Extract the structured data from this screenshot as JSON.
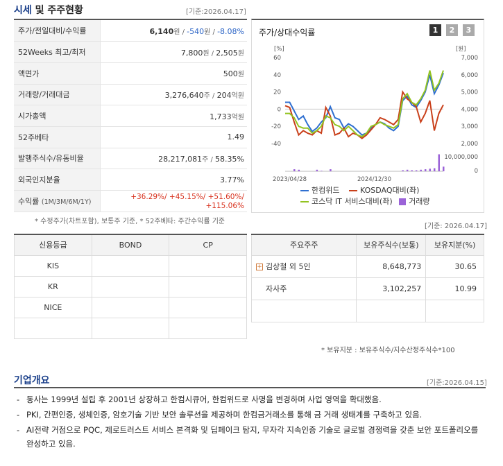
{
  "market": {
    "title_main": "시세",
    "title_rest": "및 주주현황",
    "ref_date": "[기준:2026.04.17]",
    "rows": [
      {
        "label": "주가/전일대비/수익률",
        "v1": "6,140",
        "u1": "원 / ",
        "v2": "-540",
        "u2": "원 / ",
        "v3": "-8.08%"
      },
      {
        "label": "52Weeks 최고/최저",
        "v1": "7,800",
        "u1": "원 / ",
        "v2": "2,505",
        "u2": "원"
      },
      {
        "label": "액면가",
        "v1": "500",
        "u1": "원"
      },
      {
        "label": "거래량/거래대금",
        "v1": "3,276,640",
        "u1": "주 / ",
        "v2": "204",
        "u2": "억원"
      },
      {
        "label": "시가총액",
        "v1": "1,733",
        "u1": "억원"
      },
      {
        "label": "52주베타",
        "v1": "1.49"
      },
      {
        "label": "발행주식수/유동비율",
        "v1": "28,217,081",
        "u1": "주 / ",
        "v2": "58.35%"
      },
      {
        "label": "외국인지분율",
        "v1": "3.77%"
      },
      {
        "label": "수익률",
        "sub": "(1M/3M/6M/1Y)",
        "returns": "+36.29%/ +45.15%/ +51.60%/ +115.06%"
      }
    ],
    "footnote": "* 수정주가(차트포함), 보통주 기준, * 52주베타: 주간수익률 기준"
  },
  "chart_panel": {
    "title": "주가/상대수익률",
    "tabs": [
      "1",
      "2",
      "3"
    ],
    "active_tab": 0
  },
  "chart_data": {
    "type": "line",
    "left_axis_unit": "[%]",
    "right_axis_unit": "[원]",
    "left_ticks": [
      "60",
      "40",
      "20",
      "0",
      "-20",
      "-40"
    ],
    "right_ticks": [
      "7,000",
      "6,000",
      "5,000",
      "4,000",
      "3,000",
      "2,000"
    ],
    "volume_ticks": [
      "10,000,000",
      "0"
    ],
    "x_ticks": [
      "2023/04/28",
      "2024/12/30"
    ],
    "ylim_left": [
      -40,
      60
    ],
    "ylim_right": [
      2000,
      7000
    ],
    "series": [
      {
        "name": "한컴위드",
        "color": "#2f6fd0",
        "values": [
          8,
          8,
          -2,
          -12,
          -8,
          -18,
          -26,
          -22,
          -15,
          -10,
          3,
          -10,
          -12,
          -22,
          -17,
          -20,
          -25,
          -30,
          -28,
          -22,
          -18,
          -15,
          -17,
          -22,
          -25,
          -20,
          10,
          15,
          5,
          2,
          10,
          20,
          40,
          18,
          28,
          42
        ]
      },
      {
        "name": "KOSDAQ대비(좌)",
        "color": "#c9401b",
        "values": [
          4,
          2,
          -15,
          -30,
          -25,
          -28,
          -30,
          -25,
          -28,
          2,
          -8,
          -30,
          -28,
          -22,
          -32,
          -28,
          -30,
          -34,
          -30,
          -24,
          -18,
          -10,
          -12,
          -15,
          -18,
          -12,
          20,
          12,
          8,
          3,
          -15,
          -5,
          10,
          -25,
          -5,
          5
        ]
      },
      {
        "name": "코스닥 IT 서비스대비(좌)",
        "color": "#93c321",
        "values": [
          -5,
          -5,
          -10,
          -20,
          -22,
          -22,
          -28,
          -25,
          -20,
          -8,
          -10,
          -18,
          -20,
          -25,
          -20,
          -25,
          -30,
          -32,
          -28,
          -20,
          -18,
          -15,
          -18,
          -20,
          -22,
          -18,
          12,
          18,
          8,
          5,
          12,
          22,
          45,
          22,
          30,
          45
        ]
      }
    ],
    "volume_name": "거래량",
    "volume_color": "#9b63d8",
    "volume_values": [
      0,
      0,
      0.4,
      0.3,
      0,
      0,
      0,
      0.3,
      0.1,
      0,
      0.4,
      0,
      0,
      0,
      0,
      0,
      0,
      0,
      0,
      0,
      0,
      0,
      0,
      0,
      0,
      0,
      0.2,
      0.3,
      0.2,
      0.2,
      0.3,
      0.4,
      0.5,
      0.6,
      3.3,
      0.9
    ]
  },
  "legend": [
    {
      "name": "한컴위드",
      "color": "#2f6fd0",
      "kind": "line"
    },
    {
      "name": "KOSDAQ대비(좌)",
      "color": "#c9401b",
      "kind": "line"
    },
    {
      "name": "코스닥 IT 서비스대비(좌)",
      "color": "#93c321",
      "kind": "line"
    },
    {
      "name": "거래량",
      "color": "#9b63d8",
      "kind": "box"
    }
  ],
  "credit": {
    "headers": [
      "신용등급",
      "BOND",
      "CP"
    ],
    "rows": [
      "KIS",
      "KR",
      "NICE",
      ""
    ]
  },
  "holders": {
    "ref_date": "[기준: 2026.04.17]",
    "headers": [
      "주요주주",
      "보유주식수(보통)",
      "보유지분(%)"
    ],
    "rows": [
      {
        "name": "김상철 외 5인",
        "shares": "8,648,773",
        "pct": "30.65",
        "expand": "+"
      },
      {
        "name": "자사주",
        "shares": "3,102,257",
        "pct": "10.99"
      },
      {
        "name": "",
        "shares": "",
        "pct": ""
      }
    ],
    "footnote": "* 보유지분 : 보유주식수/지수산정주식수*100"
  },
  "overview": {
    "title": "기업개요",
    "ref_date": "[기준:2026.04.15]",
    "bullets": [
      "동사는 1999년 설립 후 2001년 상장하고 한컴시큐어, 한컴위드로 사명을 변경하며 사업 영역을 확대했음.",
      "PKI, 간편인증, 생체인증, 암호기술 기반 보안 솔루션을 제공하며 한컴금거래소를 통해 금 거래 생태계를 구축하고 있음.",
      "AI전략 거점으로 PQC, 제로트러스트 서비스 본격화 및 딥페이크 탐지, 무자각 지속인증 기술로 글로벌 경쟁력을 갖춘 보안 포트폴리오를 완성하고 있음."
    ]
  }
}
